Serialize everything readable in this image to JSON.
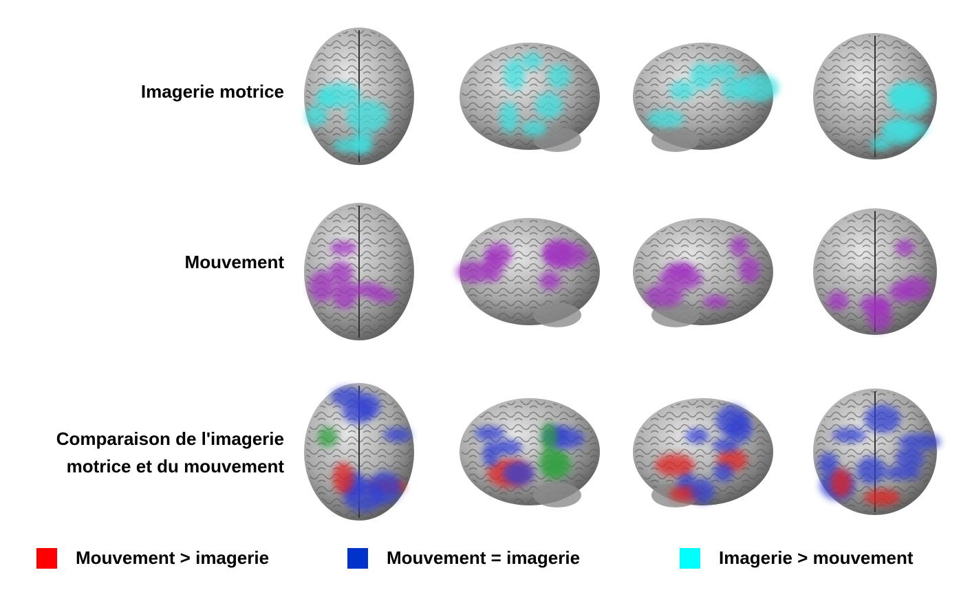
{
  "rows": [
    {
      "label": [
        "Imagerie motrice"
      ]
    },
    {
      "label": [
        "Mouvement"
      ]
    },
    {
      "label": [
        "Comparaison de l'imagerie",
        "motrice et du mouvement"
      ]
    }
  ],
  "legend": [
    {
      "label": "Mouvement > imagerie",
      "color": "#ff0000"
    },
    {
      "label": "Mouvement = imagerie",
      "color": "#0033cc"
    },
    {
      "label": "Imagerie > mouvement",
      "color": "#00ffff"
    }
  ]
}
